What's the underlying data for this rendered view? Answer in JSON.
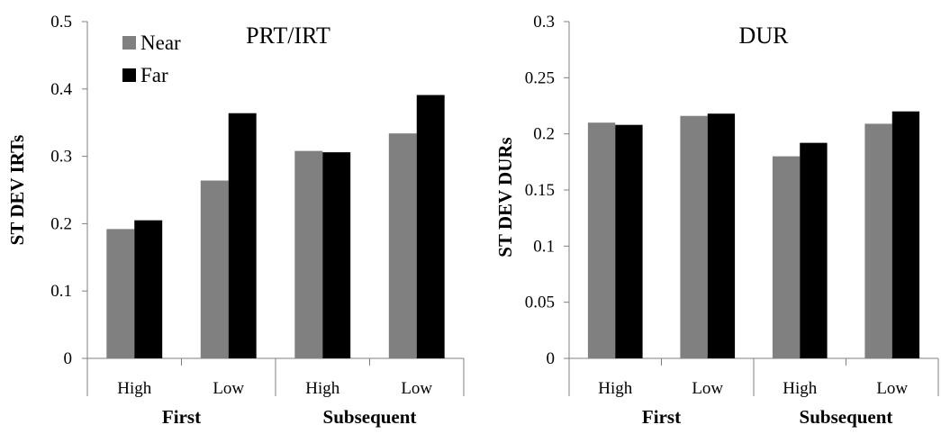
{
  "chart_data": [
    {
      "type": "bar",
      "title": "PRT/IRT",
      "ylabel": "ST DEV IRTs",
      "xlabel": "",
      "ylim": [
        0,
        0.5
      ],
      "yticks": [
        "0",
        "0.1",
        "0.2",
        "0.3",
        "0.4",
        "0.5"
      ],
      "categories": [
        "High",
        "Low",
        "High",
        "Low"
      ],
      "groups": [
        "First",
        "Subsequent"
      ],
      "series": [
        {
          "name": "Near",
          "color": "#808080",
          "values": [
            0.192,
            0.264,
            0.308,
            0.334
          ]
        },
        {
          "name": "Far",
          "color": "#000000",
          "values": [
            0.205,
            0.364,
            0.306,
            0.391
          ]
        }
      ],
      "legend": "top-left",
      "grid": false
    },
    {
      "type": "bar",
      "title": "DUR",
      "ylabel": "ST DEV DURs",
      "xlabel": "",
      "ylim": [
        0,
        0.3
      ],
      "yticks": [
        "0",
        "0.05",
        "0.1",
        "0.15",
        "0.2",
        "0.25",
        "0.3"
      ],
      "categories": [
        "High",
        "Low",
        "High",
        "Low"
      ],
      "groups": [
        "First",
        "Subsequent"
      ],
      "series": [
        {
          "name": "Near",
          "color": "#808080",
          "values": [
            0.21,
            0.216,
            0.18,
            0.209
          ]
        },
        {
          "name": "Far",
          "color": "#000000",
          "values": [
            0.208,
            0.218,
            0.192,
            0.22
          ]
        }
      ],
      "legend": "none",
      "grid": false
    }
  ]
}
